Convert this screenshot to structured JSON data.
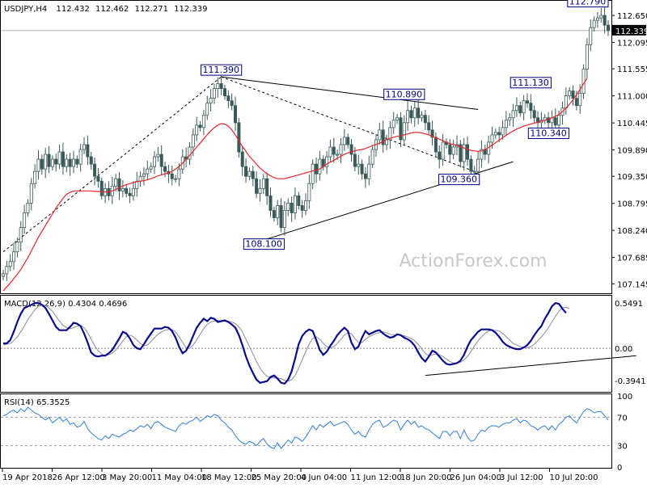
{
  "chart_data": [
    {
      "type": "candlestick",
      "title": "USDJPY,H4",
      "ohlc": [
        "112.432",
        "112.462",
        "112.271",
        "112.339"
      ],
      "current_price": "112.339",
      "watermark": "ActionForex.com",
      "ylim": [
        107.0,
        112.9
      ],
      "y_ticks": [
        "112.650",
        "112.095",
        "111.555",
        "111.000",
        "110.445",
        "109.890",
        "109.350",
        "108.795",
        "108.240",
        "107.685",
        "107.145"
      ],
      "y_tick_values": [
        112.65,
        112.095,
        111.555,
        111.0,
        110.445,
        109.89,
        109.35,
        108.795,
        108.24,
        107.685,
        107.145
      ],
      "x_ticks": [
        "19 Apr 2018",
        "26 Apr 12:00",
        "3 May 20:00",
        "11 May 04:00",
        "18 May 12:00",
        "25 May 20:00",
        "4 Jun 04:00",
        "11 Jun 12:00",
        "18 Jun 20:00",
        "26 Jun 04:00",
        "3 Jul 12:00",
        "10 Jul 20:00"
      ],
      "annotations": [
        {
          "label": "111.390",
          "value": 111.39,
          "bar": 62
        },
        {
          "label": "110.890",
          "value": 110.89,
          "bar": 114
        },
        {
          "label": "111.130",
          "value": 111.13,
          "bar": 150
        },
        {
          "label": "110.340",
          "value": 110.34,
          "bar": 156
        },
        {
          "label": "109.360",
          "value": 109.36,
          "bar": 134
        },
        {
          "label": "108.100",
          "value": 108.1,
          "bar": 79
        },
        {
          "label": "112.790",
          "value": 112.79,
          "bar": 171
        }
      ],
      "trendlines": [
        {
          "style": "solid",
          "points": [
            [
              62,
              111.39
            ],
            [
              135,
              110.72
            ]
          ]
        },
        {
          "style": "solid",
          "points": [
            [
              70,
              107.95
            ],
            [
              145,
              109.65
            ]
          ]
        },
        {
          "style": "dashed",
          "points": [
            [
              0,
              107.8
            ],
            [
              62,
              111.39
            ]
          ]
        },
        {
          "style": "dashed",
          "points": [
            [
              62,
              111.39
            ],
            [
              134,
              109.45
            ]
          ]
        }
      ],
      "series": [
        {
          "name": "",
          "kind": "close",
          "values": [
            107.35,
            107.5,
            107.6,
            107.8,
            108.0,
            108.3,
            108.6,
            108.8,
            109.2,
            109.45,
            109.7,
            109.5,
            109.8,
            109.55,
            109.7,
            109.6,
            109.85,
            109.55,
            109.7,
            109.55,
            109.7,
            109.6,
            109.9,
            110.0,
            109.75,
            109.6,
            109.35,
            109.25,
            108.95,
            109.1,
            108.95,
            109.15,
            109.3,
            109.05,
            109.1,
            109.0,
            108.95,
            109.1,
            109.25,
            109.35,
            109.4,
            109.5,
            109.55,
            109.75,
            109.8,
            109.55,
            109.45,
            109.4,
            109.3,
            109.3,
            109.5,
            109.75,
            109.7,
            109.95,
            110.2,
            110.4,
            110.35,
            110.6,
            110.85,
            110.95,
            111.15,
            111.25,
            111.15,
            111.0,
            110.9,
            110.8,
            110.45,
            109.85,
            109.55,
            109.35,
            109.45,
            109.3,
            109.0,
            109.1,
            109.3,
            108.95,
            108.65,
            108.5,
            108.75,
            108.3,
            108.65,
            108.8,
            108.6,
            108.95,
            108.75,
            108.65,
            108.85,
            109.2,
            109.6,
            109.4,
            109.7,
            109.55,
            109.75,
            109.95,
            109.8,
            109.8,
            110.0,
            110.15,
            110.0,
            109.8,
            109.55,
            109.6,
            109.4,
            109.3,
            109.6,
            109.9,
            110.1,
            110.3,
            110.0,
            110.1,
            110.35,
            110.5,
            110.55,
            110.1,
            110.45,
            110.7,
            110.55,
            110.75,
            110.55,
            110.6,
            110.45,
            110.3,
            110.15,
            109.85,
            109.7,
            110.05,
            110.0,
            109.8,
            109.95,
            110.0,
            109.65,
            110.0,
            109.7,
            109.45,
            109.45,
            109.7,
            109.9,
            109.8,
            110.05,
            110.2,
            110.25,
            110.2,
            110.35,
            110.5,
            110.55,
            110.7,
            110.8,
            110.65,
            110.9,
            110.85,
            110.7,
            110.55,
            110.45,
            110.5,
            110.55,
            110.45,
            110.55,
            110.4,
            110.6,
            110.75,
            111.0,
            111.1,
            110.95,
            110.8,
            111.05,
            111.55,
            112.05,
            112.4,
            112.55,
            112.6,
            112.65,
            112.45,
            112.34
          ]
        },
        {
          "name": "",
          "kind": "moving_average",
          "period_bars": 55,
          "values": [
            107.0,
            107.08,
            107.16,
            107.25,
            107.34,
            107.44,
            107.56,
            107.68,
            107.82,
            107.96,
            108.1,
            108.22,
            108.34,
            108.46,
            108.58,
            108.7,
            108.8,
            108.9,
            108.98,
            109.02,
            109.05,
            109.05,
            109.05,
            109.05,
            109.05,
            109.05,
            109.04,
            109.04,
            109.03,
            109.03,
            109.03,
            109.05,
            109.08,
            109.12,
            109.15,
            109.18,
            109.2,
            109.22,
            109.24,
            109.25,
            109.26,
            109.28,
            109.3,
            109.33,
            109.36,
            109.38,
            109.4,
            109.42,
            109.45,
            109.5,
            109.55,
            109.62,
            109.7,
            109.78,
            109.86,
            109.95,
            110.03,
            110.12,
            110.2,
            110.28,
            110.35,
            110.4,
            110.43,
            110.42,
            110.38,
            110.3,
            110.2,
            110.08,
            109.96,
            109.86,
            109.76,
            109.68,
            109.6,
            109.52,
            109.46,
            109.4,
            109.36,
            109.32,
            109.3,
            109.3,
            109.3,
            109.32,
            109.34,
            109.36,
            109.38,
            109.4,
            109.42,
            109.44,
            109.46,
            109.48,
            109.5,
            109.55,
            109.6,
            109.64,
            109.68,
            109.72,
            109.76,
            109.8,
            109.83,
            109.85,
            109.87,
            109.89,
            109.9,
            109.92,
            109.95,
            109.98,
            110.0,
            110.03,
            110.06,
            110.1,
            110.13,
            110.15,
            110.17,
            110.18,
            110.2,
            110.22,
            110.24,
            110.25,
            110.25,
            110.24,
            110.22,
            110.2,
            110.17,
            110.14,
            110.11,
            110.08,
            110.05,
            110.02,
            110.0,
            109.98,
            109.96,
            109.93,
            109.9,
            109.88,
            109.87,
            109.86,
            109.87,
            109.9,
            109.94,
            109.99,
            110.04,
            110.09,
            110.14,
            110.19,
            110.24,
            110.28,
            110.32,
            110.35,
            110.38,
            110.4,
            110.42,
            110.44,
            110.46,
            110.48,
            110.5,
            110.52,
            110.55,
            110.58,
            110.62,
            110.68,
            110.75,
            110.83,
            110.92,
            111.02,
            111.13,
            111.25,
            111.36
          ]
        }
      ]
    },
    {
      "type": "line",
      "title": "MACD(12,26,9) 0.4304 0.4696",
      "ylim": [
        -0.52,
        0.62
      ],
      "y_ticks": [
        "0.5491",
        "0.00",
        "-0.3941"
      ],
      "y_tick_values": [
        0.5491,
        0.0,
        -0.3941
      ],
      "zero_line": true,
      "trendlines": [
        {
          "style": "solid",
          "points": [
            [
              120,
              -0.33
            ],
            [
              180,
              -0.09
            ]
          ]
        }
      ],
      "series": [
        {
          "name": "",
          "kind": "macd",
          "values": [
            0.06,
            0.06,
            0.1,
            0.2,
            0.32,
            0.42,
            0.49,
            0.51,
            0.53,
            0.55,
            0.55,
            0.53,
            0.49,
            0.42,
            0.34,
            0.26,
            0.22,
            0.22,
            0.22,
            0.26,
            0.31,
            0.3,
            0.27,
            0.18,
            0.07,
            -0.05,
            -0.09,
            -0.1,
            -0.09,
            -0.09,
            -0.06,
            -0.02,
            0.05,
            0.12,
            0.2,
            0.18,
            0.12,
            0.04,
            0.0,
            -0.01,
            0.05,
            0.12,
            0.18,
            0.24,
            0.24,
            0.24,
            0.26,
            0.25,
            0.21,
            0.13,
            0.02,
            -0.06,
            -0.03,
            0.05,
            0.15,
            0.25,
            0.31,
            0.36,
            0.33,
            0.37,
            0.36,
            0.32,
            0.33,
            0.34,
            0.32,
            0.29,
            0.25,
            0.16,
            0.04,
            -0.1,
            -0.21,
            -0.3,
            -0.38,
            -0.42,
            -0.41,
            -0.4,
            -0.35,
            -0.33,
            -0.37,
            -0.42,
            -0.43,
            -0.38,
            -0.28,
            -0.12,
            0.05,
            0.15,
            0.2,
            0.23,
            0.21,
            0.1,
            -0.02,
            -0.08,
            -0.04,
            0.03,
            0.09,
            0.16,
            0.21,
            0.25,
            0.21,
            0.07,
            -0.01,
            0.02,
            0.13,
            0.21,
            0.17,
            0.19,
            0.21,
            0.22,
            0.18,
            0.15,
            0.13,
            0.14,
            0.17,
            0.16,
            0.13,
            0.11,
            0.08,
            0.03,
            -0.05,
            -0.12,
            -0.16,
            -0.1,
            -0.03,
            -0.05,
            -0.1,
            -0.15,
            -0.19,
            -0.2,
            -0.19,
            -0.18,
            -0.15,
            -0.08,
            0.02,
            0.1,
            0.15,
            0.2,
            0.23,
            0.23,
            0.23,
            0.22,
            0.19,
            0.14,
            0.08,
            0.04,
            0.02,
            0.0,
            -0.01,
            -0.01,
            0.01,
            0.04,
            0.09,
            0.16,
            0.22,
            0.27,
            0.36,
            0.43,
            0.51,
            0.55,
            0.54,
            0.48,
            0.43
          ]
        },
        {
          "name": "",
          "kind": "signal",
          "values": [
            0.04,
            0.05,
            0.06,
            0.09,
            0.14,
            0.2,
            0.27,
            0.35,
            0.41,
            0.47,
            0.51,
            0.53,
            0.52,
            0.49,
            0.45,
            0.39,
            0.33,
            0.28,
            0.25,
            0.24,
            0.25,
            0.27,
            0.28,
            0.25,
            0.19,
            0.11,
            0.03,
            -0.03,
            -0.07,
            -0.09,
            -0.08,
            -0.06,
            -0.02,
            0.03,
            0.09,
            0.14,
            0.16,
            0.14,
            0.1,
            0.06,
            0.03,
            0.04,
            0.08,
            0.13,
            0.17,
            0.2,
            0.22,
            0.23,
            0.23,
            0.2,
            0.14,
            0.07,
            0.01,
            0.0,
            0.04,
            0.1,
            0.17,
            0.24,
            0.29,
            0.32,
            0.33,
            0.34,
            0.33,
            0.33,
            0.33,
            0.32,
            0.3,
            0.26,
            0.2,
            0.11,
            0.02,
            -0.07,
            -0.16,
            -0.24,
            -0.3,
            -0.34,
            -0.36,
            -0.36,
            -0.36,
            -0.37,
            -0.39,
            -0.4,
            -0.38,
            -0.33,
            -0.24,
            -0.14,
            -0.04,
            0.05,
            0.12,
            0.14,
            0.11,
            0.06,
            0.02,
            0.01,
            0.02,
            0.06,
            0.11,
            0.16,
            0.19,
            0.18,
            0.12,
            0.07,
            0.07,
            0.11,
            0.14,
            0.16,
            0.18,
            0.19,
            0.2,
            0.19,
            0.17,
            0.16,
            0.16,
            0.16,
            0.15,
            0.14,
            0.12,
            0.09,
            0.05,
            -0.01,
            -0.06,
            -0.09,
            -0.08,
            -0.07,
            -0.08,
            -0.1,
            -0.13,
            -0.16,
            -0.18,
            -0.18,
            -0.17,
            -0.14,
            -0.1,
            -0.04,
            0.03,
            0.09,
            0.14,
            0.18,
            0.21,
            0.22,
            0.22,
            0.21,
            0.18,
            0.14,
            0.1,
            0.06,
            0.04,
            0.02,
            0.01,
            0.01,
            0.02,
            0.05,
            0.09,
            0.14,
            0.19,
            0.25,
            0.32,
            0.39,
            0.45,
            0.49,
            0.5,
            0.48
          ]
        }
      ]
    },
    {
      "type": "line",
      "title": "RSI(14) 65.3525",
      "ylim": [
        0,
        100
      ],
      "y_ticks": [
        "100",
        "70",
        "30",
        "0"
      ],
      "y_tick_values": [
        100,
        70,
        30,
        0
      ],
      "levels": [
        70,
        30
      ],
      "series": [
        {
          "name": "",
          "kind": "rsi",
          "values": [
            72,
            74,
            78,
            80,
            76,
            82,
            78,
            84,
            80,
            76,
            74,
            70,
            66,
            70,
            62,
            66,
            70,
            64,
            68,
            60,
            62,
            56,
            58,
            64,
            54,
            48,
            44,
            40,
            38,
            44,
            40,
            46,
            44,
            42,
            46,
            48,
            52,
            50,
            54,
            58,
            56,
            60,
            54,
            62,
            64,
            60,
            56,
            54,
            52,
            50,
            58,
            62,
            60,
            64,
            66,
            70,
            64,
            68,
            72,
            70,
            74,
            72,
            66,
            62,
            56,
            52,
            44,
            38,
            34,
            32,
            36,
            34,
            30,
            36,
            40,
            32,
            28,
            26,
            34,
            26,
            32,
            38,
            34,
            42,
            40,
            36,
            42,
            50,
            58,
            52,
            60,
            56,
            60,
            64,
            58,
            60,
            62,
            64,
            60,
            52,
            46,
            50,
            44,
            42,
            52,
            60,
            64,
            66,
            56,
            58,
            62,
            66,
            64,
            52,
            60,
            66,
            60,
            64,
            56,
            58,
            54,
            52,
            48,
            44,
            40,
            50,
            50,
            44,
            50,
            50,
            40,
            52,
            42,
            36,
            38,
            46,
            52,
            50,
            56,
            58,
            58,
            56,
            60,
            62,
            62,
            66,
            68,
            62,
            66,
            64,
            58,
            56,
            52,
            56,
            58,
            52,
            58,
            52,
            60,
            64,
            70,
            72,
            66,
            62,
            70,
            78,
            82,
            80,
            76,
            78,
            78,
            72,
            66
          ]
        }
      ]
    }
  ]
}
